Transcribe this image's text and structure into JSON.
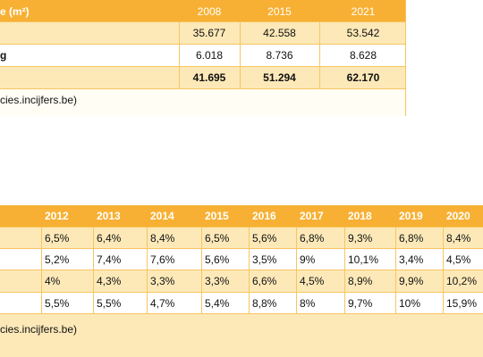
{
  "table1": {
    "header": {
      "label": "e (m²)",
      "years": [
        "2008",
        "2015",
        "2021"
      ]
    },
    "rows": [
      {
        "label": "",
        "values": [
          "35.677",
          "42.558",
          "53.542"
        ],
        "bold": false
      },
      {
        "label": "g",
        "values": [
          "6.018",
          "8.736",
          "8.628"
        ],
        "bold": false
      },
      {
        "label": "",
        "values": [
          "41.695",
          "51.294",
          "62.170"
        ],
        "bold": true
      }
    ],
    "source": "cies.incijfers.be)"
  },
  "table2": {
    "years": [
      "2012",
      "2013",
      "2014",
      "2015",
      "2016",
      "2017",
      "2018",
      "2019",
      "2020"
    ],
    "rows": [
      [
        "6,5%",
        "6,4%",
        "8,4%",
        "6,5%",
        "5,6%",
        "6,8%",
        "9,3%",
        "6,8%",
        "8,4%"
      ],
      [
        "5,2%",
        "7,4%",
        "7,6%",
        "5,6%",
        "3,5%",
        "9%",
        "10,1%",
        "3,4%",
        "4,5%"
      ],
      [
        "4%",
        "4,3%",
        "3,3%",
        "3,3%",
        "6,6%",
        "4,5%",
        "8,9%",
        "9,9%",
        "10,2%"
      ],
      [
        "5,5%",
        "5,5%",
        "4,7%",
        "5,4%",
        "8,8%",
        "8%",
        "9,7%",
        "10%",
        "15,9%"
      ]
    ],
    "source": "cies.incijfers.be)"
  },
  "colors": {
    "header_bg": "#f7b033",
    "row_tint": "#fde9b8",
    "border": "#f7c561"
  }
}
